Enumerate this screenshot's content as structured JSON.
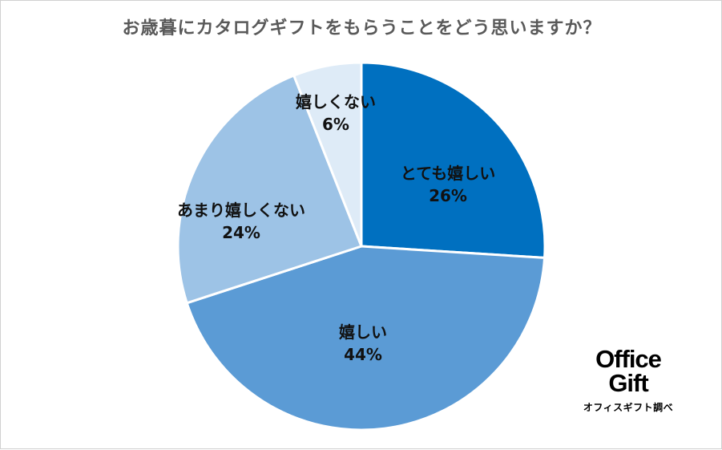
{
  "chart_data": {
    "type": "pie",
    "title": "お歳暮にカタログギフトをもらうことをどう思いますか？",
    "categories": [
      "とても嬉しい",
      "嬉しい",
      "あまり嬉しくない",
      "嬉しくない"
    ],
    "values": [
      26,
      44,
      24,
      6
    ],
    "value_labels": [
      "26%",
      "44%",
      "24%",
      "6%"
    ],
    "colors": [
      "#0070c0",
      "#5b9bd5",
      "#9dc3e6",
      "#deebf7"
    ],
    "start": "12 o'clock",
    "direction": "clockwise"
  },
  "brand": {
    "line1": "Office",
    "line2": "Gift",
    "subtitle": "オフィスギフト調べ"
  }
}
